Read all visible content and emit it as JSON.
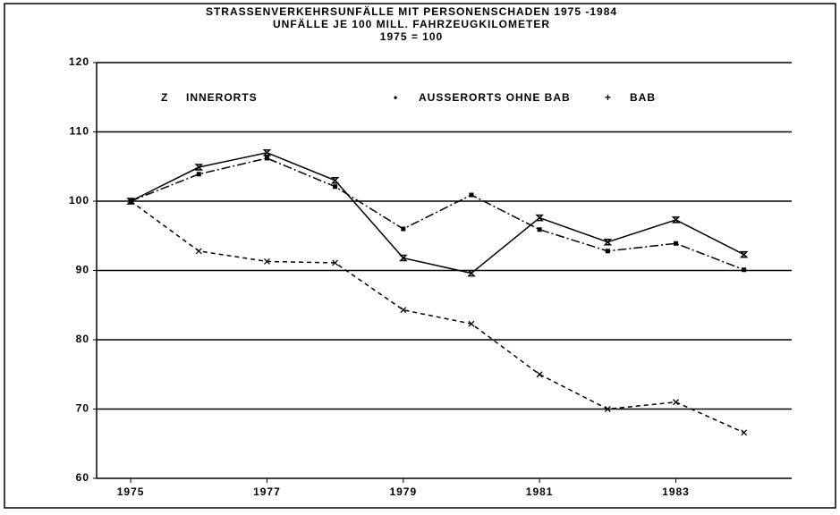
{
  "chart_data": {
    "type": "line",
    "title": [
      "STRASSENVERKEHRSUNFÄLLE MIT PERSONENSCHADEN 1975 -1984",
      "UNFÄLLE JE 100 MILL. FAHRZEUGKILOMETER",
      "1975 = 100"
    ],
    "x": [
      1975,
      1976,
      1977,
      1978,
      1979,
      1980,
      1981,
      1982,
      1983,
      1984
    ],
    "series": [
      {
        "name": "INNERORTS",
        "symbol": "Z",
        "color": "#000000",
        "style": "solid",
        "marker": "hourglass",
        "values": [
          100,
          104.9,
          107,
          103,
          91.8,
          89.6,
          97.6,
          94.1,
          97.3,
          92.3
        ]
      },
      {
        "name": "AUSSERORTS OHNE BAB",
        "symbol": "•",
        "color": "#000000",
        "style": "dashdot",
        "marker": "square",
        "values": [
          100,
          103.9,
          106.2,
          102.1,
          96,
          100.9,
          95.9,
          92.8,
          93.9,
          90.1
        ]
      },
      {
        "name": "BAB",
        "symbol": "+",
        "color": "#000000",
        "style": "dashed",
        "marker": "cross",
        "values": [
          100,
          92.8,
          91.3,
          91.1,
          84.3,
          82.3,
          75,
          70,
          71,
          66.6
        ]
      }
    ],
    "xlim": [
      1974.5,
      1984.7
    ],
    "xticks": [
      1975,
      1977,
      1979,
      1981,
      1983
    ],
    "ylim": [
      60,
      120
    ],
    "yticks": [
      60,
      70,
      80,
      90,
      100,
      110,
      120
    ],
    "grid": true
  }
}
